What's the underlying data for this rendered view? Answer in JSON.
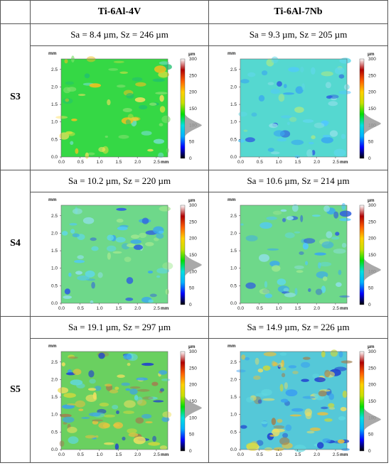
{
  "table": {
    "columns": [
      "",
      "Ti-6Al-4V",
      "Ti-6Al-7Nb"
    ],
    "rows": [
      {
        "label": "S3",
        "stats": [
          "Sa = 8.4 µm, Sz = 246 µm",
          "Sa = 9.3 µm, Sz = 205 µm"
        ],
        "maps": [
          {
            "base": "#35d845",
            "blobs": "mixed",
            "peak": 100
          },
          {
            "base": "#55d8d0",
            "blobs": "cyan",
            "peak": 105
          }
        ]
      },
      {
        "label": "S4",
        "stats": [
          "Sa = 10.2 µm, Sz = 220 µm",
          "Sa = 10.6 µm, Sz = 214 µm"
        ],
        "maps": [
          {
            "base": "#6ed88a",
            "blobs": "cyan",
            "peak": 120
          },
          {
            "base": "#6ed88a",
            "blobs": "cyan",
            "peak": 105
          }
        ]
      },
      {
        "label": "S5",
        "stats": [
          "Sa = 19.1 µm, Sz = 297 µm",
          "Sa = 14.9 µm, Sz = 226 µm"
        ],
        "maps": [
          {
            "base": "#6ad060",
            "blobs": "rough",
            "peak": 130
          },
          {
            "base": "#55c8d8",
            "blobs": "rough",
            "peak": 95
          }
        ]
      }
    ]
  },
  "map_axes": {
    "y_unit": "mm",
    "x_unit": "mm",
    "y_ticks": [
      "0.0",
      "0.5",
      "1.0",
      "1.5",
      "2.0",
      "2.5"
    ],
    "x_ticks": [
      "0.0",
      "0.5",
      "1.0",
      "1.5",
      "2.0",
      "2.5"
    ],
    "colorbar_unit": "µm",
    "colorbar_ticks": [
      "0",
      "50",
      "100",
      "150",
      "200",
      "250",
      "300"
    ]
  },
  "colorbar_colors": [
    "#000000",
    "#0000ff",
    "#00b0ff",
    "#00e0e0",
    "#00e000",
    "#c8e000",
    "#ffd000",
    "#ff6000",
    "#b00000",
    "#ffffff"
  ]
}
